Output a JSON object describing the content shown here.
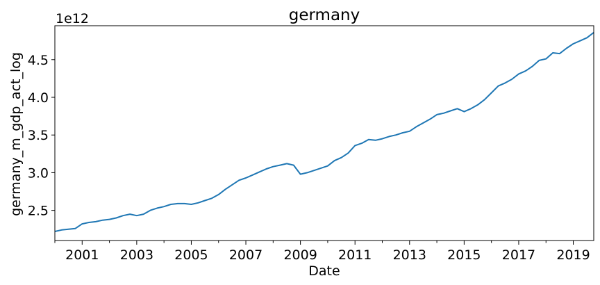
{
  "chart_data": {
    "type": "line",
    "title": "germany",
    "xlabel": "Date",
    "ylabel": "germany_m_gdp_act_log",
    "y_offset_label": "1e12",
    "x_tick_labels": [
      "2001",
      "2003",
      "2005",
      "2007",
      "2009",
      "2011",
      "2013",
      "2015",
      "2017",
      "2019"
    ],
    "y_tick_labels": [
      "2.5",
      "3.0",
      "3.5",
      "4.0",
      "4.5"
    ],
    "xlim": [
      "2000-01",
      "2019-10"
    ],
    "ylim": [
      2.1,
      4.95
    ],
    "y_unit_multiplier": 1000000000000.0,
    "grid": false,
    "line_color": "#1f77b4",
    "series": [
      {
        "x": [
          "2000-01",
          "2000-04",
          "2000-07",
          "2000-10",
          "2001-01",
          "2001-04",
          "2001-07",
          "2001-10",
          "2002-01",
          "2002-04",
          "2002-07",
          "2002-10",
          "2003-01",
          "2003-04",
          "2003-07",
          "2003-10",
          "2004-01",
          "2004-04",
          "2004-07",
          "2004-10",
          "2005-01",
          "2005-04",
          "2005-07",
          "2005-10",
          "2006-01",
          "2006-04",
          "2006-07",
          "2006-10",
          "2007-01",
          "2007-04",
          "2007-07",
          "2007-10",
          "2008-01",
          "2008-04",
          "2008-07",
          "2008-10",
          "2009-01",
          "2009-04",
          "2009-07",
          "2009-10",
          "2010-01",
          "2010-04",
          "2010-07",
          "2010-10",
          "2011-01",
          "2011-04",
          "2011-07",
          "2011-10",
          "2012-01",
          "2012-04",
          "2012-07",
          "2012-10",
          "2013-01",
          "2013-04",
          "2013-07",
          "2013-10",
          "2014-01",
          "2014-04",
          "2014-07",
          "2014-10",
          "2015-01",
          "2015-04",
          "2015-07",
          "2015-10",
          "2016-01",
          "2016-04",
          "2016-07",
          "2016-10",
          "2017-01",
          "2017-04",
          "2017-07",
          "2017-10",
          "2018-01",
          "2018-04",
          "2018-07",
          "2018-10",
          "2019-01",
          "2019-04",
          "2019-07",
          "2019-10"
        ],
        "values": [
          2.22,
          2.24,
          2.25,
          2.26,
          2.32,
          2.34,
          2.35,
          2.37,
          2.38,
          2.4,
          2.43,
          2.45,
          2.43,
          2.45,
          2.5,
          2.53,
          2.55,
          2.58,
          2.59,
          2.59,
          2.58,
          2.6,
          2.63,
          2.66,
          2.71,
          2.78,
          2.84,
          2.9,
          2.93,
          2.97,
          3.01,
          3.05,
          3.08,
          3.1,
          3.12,
          3.1,
          2.98,
          3.0,
          3.03,
          3.06,
          3.09,
          3.16,
          3.2,
          3.26,
          3.36,
          3.39,
          3.44,
          3.43,
          3.45,
          3.48,
          3.5,
          3.53,
          3.55,
          3.61,
          3.66,
          3.71,
          3.77,
          3.79,
          3.82,
          3.85,
          3.81,
          3.85,
          3.9,
          3.97,
          4.06,
          4.15,
          4.19,
          4.24,
          4.31,
          4.35,
          4.41,
          4.49,
          4.51,
          4.59,
          4.58,
          4.65,
          4.71,
          4.75,
          4.79,
          4.86
        ]
      }
    ]
  }
}
